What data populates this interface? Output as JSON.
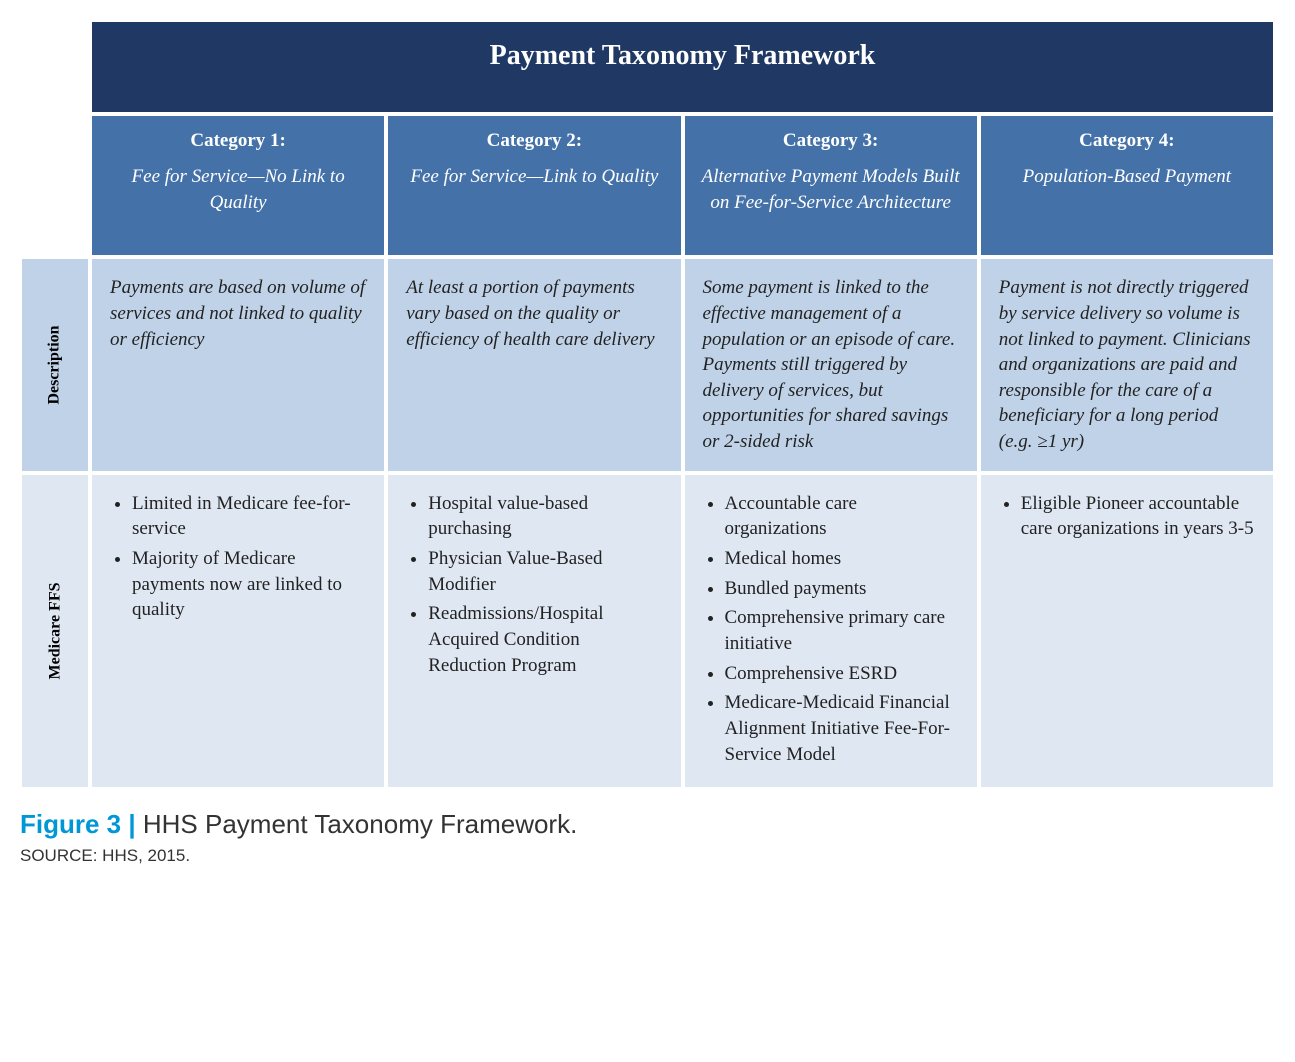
{
  "colors": {
    "title_bg": "#1f3864",
    "header_bg": "#4472a8",
    "desc_bg": "#c0d2e8",
    "ffs_bg": "#dee7f2",
    "border": "#ffffff",
    "title_text": "#ffffff",
    "header_text": "#ffffff",
    "body_text": "#222222",
    "fig_accent": "#0097d6"
  },
  "table": {
    "title": "Payment Taxonomy Framework",
    "row_labels": {
      "description": "Description",
      "medicare_ffs": "Medicare FFS"
    },
    "columns": [
      {
        "title": "Category 1:",
        "subtitle": "Fee for Service—No Link to Quality",
        "description": "Payments are based on volume of services and not linked to quality or efficiency",
        "ffs": [
          "Limited in Medicare fee-for-service",
          "Majority of Medicare payments now are linked to quality"
        ]
      },
      {
        "title": "Category 2:",
        "subtitle": "Fee for Service—Link to Quality",
        "description": "At least a portion of payments vary based on the quality or efficiency of health care delivery",
        "ffs": [
          "Hospital value-based purchasing",
          "Physician Value-Based Modifier",
          "Readmissions/Hospital Acquired Condition Reduction Program"
        ]
      },
      {
        "title": "Category 3:",
        "subtitle": "Alternative Payment Models Built on Fee-for-Service Architecture",
        "description": "Some payment is linked to the effective management of a population or an episode of care. Payments still triggered by delivery of services, but opportunities for shared savings or 2-sided risk",
        "ffs": [
          "Accountable care organizations",
          "Medical homes",
          "Bundled payments",
          "Comprehensive primary care initiative",
          "Comprehensive ESRD",
          "Medicare-Medicaid Financial Alignment Initiative Fee-For-Service Model"
        ]
      },
      {
        "title": "Category 4:",
        "subtitle": "Population-Based Payment",
        "description": "Payment is not directly triggered by service delivery so volume is not linked to payment. Clinicians and organizations are paid and responsible for the care of a beneficiary for a long period (e.g. ≥1 yr)",
        "ffs": [
          "Eligible Pioneer accountable care organizations in years 3-5"
        ]
      }
    ]
  },
  "caption": {
    "label": "Figure 3",
    "pipe": " | ",
    "text": "HHS Payment Taxonomy Framework.",
    "source": "SOURCE: HHS, 2015."
  }
}
